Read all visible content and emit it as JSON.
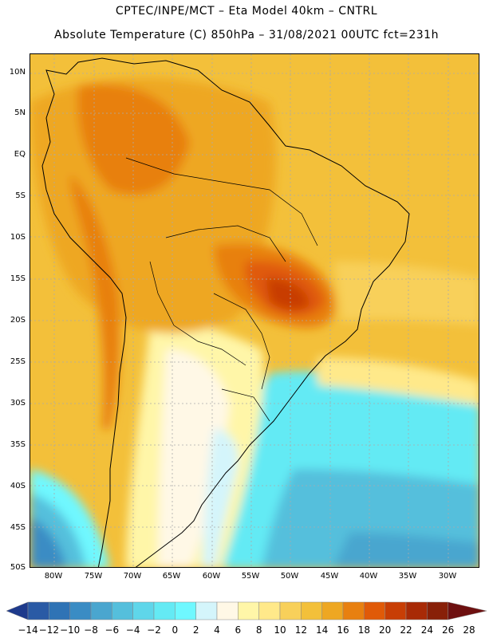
{
  "title_line1": "CPTEC/INPE/MCT –  Eta Model 40km – CNTRL",
  "title_line2": "Absolute Temperature (C) 850hPa – 31/08/2021 00UTC fct=231h",
  "lat_labels": [
    "10N",
    "5N",
    "EQ",
    "5S",
    "10S",
    "15S",
    "20S",
    "25S",
    "30S",
    "35S",
    "40S",
    "45S",
    "50S"
  ],
  "lon_labels": [
    "80W",
    "75W",
    "70W",
    "65W",
    "60W",
    "55W",
    "50W",
    "45W",
    "40W",
    "35W",
    "30W"
  ],
  "colorbar": {
    "labels": [
      "-14",
      "-12",
      "-10",
      "-8",
      "-6",
      "-4",
      "-2",
      "0",
      "2",
      "4",
      "6",
      "8",
      "10",
      "12",
      "14",
      "16",
      "18",
      "20",
      "22",
      "24",
      "26",
      "28"
    ],
    "colors": [
      "#1e3a8c",
      "#2a5aa5",
      "#2f73b5",
      "#3a8cc4",
      "#4aa6cf",
      "#55bfdc",
      "#5fd6ea",
      "#64eaf4",
      "#6ff8ff",
      "#d4f5fb",
      "#fff8e6",
      "#fff6a8",
      "#ffe98a",
      "#f8d05a",
      "#f3c03a",
      "#eea722",
      "#e88010",
      "#e05a08",
      "#c83e05",
      "#a82a06",
      "#882008",
      "#6e1010"
    ]
  }
}
